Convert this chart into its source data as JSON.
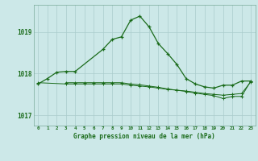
{
  "background_color": "#cce8e8",
  "grid_color": "#aacccc",
  "line_color": "#1a6b1a",
  "text_color": "#1a6b1a",
  "xlabel": "Graphe pression niveau de la mer (hPa)",
  "xlim": [
    -0.5,
    23.5
  ],
  "ylim": [
    1016.75,
    1019.65
  ],
  "yticks": [
    1017,
    1018,
    1019
  ],
  "xticks": [
    0,
    1,
    2,
    3,
    4,
    5,
    6,
    7,
    8,
    9,
    10,
    11,
    12,
    13,
    14,
    15,
    16,
    17,
    18,
    19,
    20,
    21,
    22,
    23
  ],
  "series1": {
    "x": [
      0,
      1,
      2,
      3,
      4,
      7,
      8,
      9,
      10,
      11,
      12,
      13,
      14,
      15,
      16,
      17,
      18,
      19,
      20,
      21,
      22,
      23
    ],
    "y": [
      1017.75,
      1017.88,
      1018.03,
      1018.05,
      1018.05,
      1018.58,
      1018.82,
      1018.88,
      1019.28,
      1019.38,
      1019.12,
      1018.72,
      1018.48,
      1018.22,
      1017.88,
      1017.75,
      1017.68,
      1017.65,
      1017.72,
      1017.72,
      1017.82,
      1017.82
    ]
  },
  "series2": {
    "x": [
      0,
      3,
      4,
      5,
      6,
      7,
      8,
      9,
      10,
      11,
      12,
      13,
      14,
      15,
      16,
      17,
      18,
      19,
      20,
      21,
      22,
      23
    ],
    "y": [
      1017.78,
      1017.75,
      1017.75,
      1017.75,
      1017.75,
      1017.75,
      1017.75,
      1017.75,
      1017.72,
      1017.7,
      1017.68,
      1017.65,
      1017.62,
      1017.6,
      1017.58,
      1017.55,
      1017.52,
      1017.5,
      1017.48,
      1017.5,
      1017.52,
      1017.8
    ]
  },
  "series3": {
    "x": [
      3,
      4,
      5,
      6,
      7,
      8,
      9,
      10,
      11,
      12,
      13,
      14,
      15,
      16,
      17,
      18,
      19,
      20,
      21,
      22,
      23
    ],
    "y": [
      1017.78,
      1017.78,
      1017.78,
      1017.78,
      1017.78,
      1017.78,
      1017.78,
      1017.75,
      1017.73,
      1017.7,
      1017.67,
      1017.63,
      1017.6,
      1017.57,
      1017.53,
      1017.5,
      1017.47,
      1017.4,
      1017.45,
      1017.45,
      1017.82
    ]
  }
}
